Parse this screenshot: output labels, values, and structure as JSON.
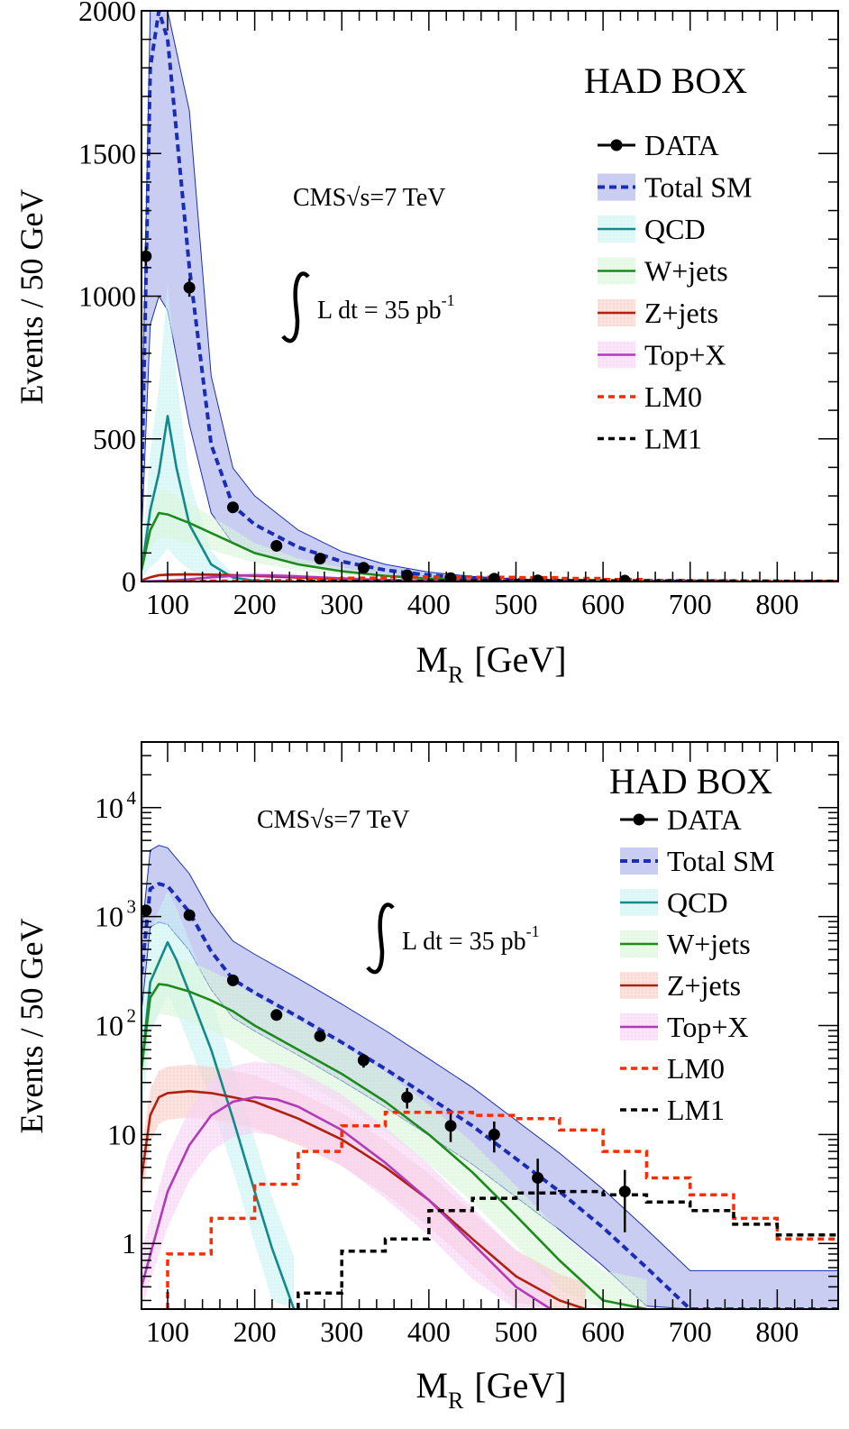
{
  "chart_data": [
    {
      "type": "line",
      "scale": "linear",
      "box_label": "HAD BOX",
      "cms_label": "CMS",
      "sqrt_label": "√s=7 TeV",
      "lumi_label": "L dt = 35 pb",
      "lumi_exp": "-1",
      "xlabel_main": "M",
      "xlabel_sub": "R",
      "xlabel_unit": "[GeV]",
      "ylabel": "Events / 50 GeV",
      "xlim": [
        70,
        870
      ],
      "ylim": [
        0,
        2000
      ],
      "x_ticks": [
        "100",
        "200",
        "300",
        "400",
        "500",
        "600",
        "700",
        "800"
      ],
      "y_ticks": [
        "0",
        "500",
        "1000",
        "1500",
        "2000"
      ],
      "legend": [
        "DATA",
        "Total SM",
        "QCD",
        "W+jets",
        "Z+jets",
        "Top+X",
        "LM0",
        "LM1"
      ],
      "data_points": {
        "x": [
          75,
          125,
          175,
          225,
          275,
          325,
          375,
          425,
          475,
          525,
          625
        ],
        "y": [
          1140,
          1030,
          260,
          125,
          80,
          48,
          22,
          12,
          10,
          4,
          3
        ]
      },
      "series": [
        {
          "name": "Total SM",
          "x": [
            70,
            80,
            90,
            100,
            125,
            150,
            175,
            200,
            250,
            300,
            350,
            400,
            450,
            500,
            550,
            600,
            650,
            700,
            870
          ],
          "y": [
            300,
            1800,
            2000,
            1900,
            1100,
            480,
            265,
            200,
            120,
            70,
            40,
            22,
            12,
            6,
            3,
            1.4,
            0.6,
            0.25,
            0.1
          ]
        },
        {
          "name": "QCD",
          "x": [
            70,
            80,
            90,
            100,
            110,
            125,
            150,
            175,
            200,
            220,
            245
          ],
          "y": [
            40,
            250,
            380,
            580,
            400,
            200,
            60,
            14,
            3,
            0.9,
            0.25
          ]
        },
        {
          "name": "W+jets",
          "x": [
            70,
            80,
            90,
            100,
            125,
            150,
            175,
            200,
            250,
            300,
            350,
            400,
            450,
            500,
            550,
            600,
            650
          ],
          "y": [
            40,
            180,
            240,
            235,
            205,
            170,
            135,
            100,
            60,
            36,
            20,
            10,
            4.5,
            1.8,
            0.7,
            0.3,
            0.25
          ]
        },
        {
          "name": "Z+jets",
          "x": [
            70,
            80,
            90,
            100,
            125,
            150,
            175,
            200,
            250,
            300,
            350,
            400,
            450,
            500,
            550,
            580
          ],
          "y": [
            4,
            15,
            22,
            24,
            25,
            24,
            22,
            20,
            14,
            9,
            5,
            2.5,
            1.1,
            0.5,
            0.3,
            0.25
          ]
        },
        {
          "name": "Top+X",
          "x": [
            70,
            100,
            125,
            150,
            175,
            200,
            225,
            250,
            300,
            350,
            400,
            450,
            500,
            540
          ],
          "y": [
            0.4,
            3,
            8,
            15,
            20,
            22,
            21,
            18,
            11,
            5.5,
            2.5,
            1,
            0.4,
            0.25
          ]
        },
        {
          "name": "LM0",
          "x": [
            100,
            150,
            200,
            250,
            300,
            350,
            400,
            450,
            500,
            550,
            600,
            650,
            700,
            750,
            800,
            870
          ],
          "y": [
            0.8,
            1.7,
            3.5,
            7,
            12,
            16,
            16,
            15,
            14,
            11,
            7,
            4,
            2.8,
            1.7,
            1.1,
            1.1
          ]
        },
        {
          "name": "LM1",
          "x": [
            250,
            300,
            350,
            400,
            450,
            500,
            550,
            600,
            650,
            700,
            750,
            800,
            870
          ],
          "y": [
            0.35,
            0.85,
            1.1,
            2.0,
            2.6,
            2.9,
            3.0,
            2.8,
            2.4,
            2.0,
            1.5,
            1.2,
            1.2
          ]
        }
      ]
    },
    {
      "type": "line",
      "scale": "log",
      "box_label": "HAD BOX",
      "cms_label": "CMS",
      "sqrt_label": "√s=7 TeV",
      "lumi_label": "L dt = 35 pb",
      "lumi_exp": "-1",
      "xlabel_main": "M",
      "xlabel_sub": "R",
      "xlabel_unit": "[GeV]",
      "ylabel": "Events / 50 GeV",
      "xlim": [
        70,
        870
      ],
      "ylim": [
        0.25,
        40000
      ],
      "x_ticks": [
        "100",
        "200",
        "300",
        "400",
        "500",
        "600",
        "700",
        "800"
      ],
      "y_ticks": [
        {
          "base": "1",
          "exp": ""
        },
        {
          "base": "10",
          "exp": ""
        },
        {
          "base": "10",
          "exp": "2"
        },
        {
          "base": "10",
          "exp": "3"
        },
        {
          "base": "10",
          "exp": "4"
        }
      ],
      "legend": [
        "DATA",
        "Total SM",
        "QCD",
        "W+jets",
        "Z+jets",
        "Top+X",
        "LM0",
        "LM1"
      ],
      "data_points": {
        "x": [
          75,
          125,
          175,
          225,
          275,
          325,
          375,
          425,
          475,
          525,
          625
        ],
        "y": [
          1140,
          1030,
          260,
          125,
          80,
          48,
          22,
          12,
          10,
          4,
          3
        ]
      },
      "series": [
        {
          "name": "Total SM",
          "x": [
            70,
            80,
            90,
            100,
            125,
            150,
            175,
            200,
            250,
            300,
            350,
            400,
            450,
            500,
            550,
            600,
            650,
            700,
            870
          ],
          "y": [
            300,
            1800,
            2000,
            1900,
            1100,
            480,
            265,
            200,
            120,
            70,
            40,
            22,
            12,
            6,
            3,
            1.4,
            0.6,
            0.25,
            0.25
          ]
        },
        {
          "name": "QCD",
          "x": [
            70,
            80,
            90,
            100,
            110,
            125,
            150,
            175,
            200,
            220,
            245
          ],
          "y": [
            40,
            250,
            380,
            580,
            400,
            200,
            60,
            14,
            3,
            0.9,
            0.25
          ]
        },
        {
          "name": "W+jets",
          "x": [
            70,
            80,
            90,
            100,
            125,
            150,
            175,
            200,
            250,
            300,
            350,
            400,
            450,
            500,
            550,
            600,
            650
          ],
          "y": [
            40,
            180,
            240,
            235,
            205,
            170,
            135,
            100,
            60,
            36,
            20,
            10,
            4.5,
            1.8,
            0.7,
            0.3,
            0.25
          ]
        },
        {
          "name": "Z+jets",
          "x": [
            70,
            80,
            90,
            100,
            125,
            150,
            175,
            200,
            250,
            300,
            350,
            400,
            450,
            500,
            550,
            580
          ],
          "y": [
            4,
            15,
            22,
            24,
            25,
            24,
            22,
            20,
            14,
            9,
            5,
            2.5,
            1.1,
            0.5,
            0.3,
            0.25
          ]
        },
        {
          "name": "Top+X",
          "x": [
            70,
            100,
            125,
            150,
            175,
            200,
            225,
            250,
            300,
            350,
            400,
            450,
            500,
            540
          ],
          "y": [
            0.4,
            3,
            8,
            15,
            20,
            22,
            21,
            18,
            11,
            5.5,
            2.5,
            1,
            0.4,
            0.25
          ]
        },
        {
          "name": "LM0",
          "x": [
            100,
            150,
            200,
            250,
            300,
            350,
            400,
            450,
            500,
            550,
            600,
            650,
            700,
            750,
            800,
            870
          ],
          "y": [
            0.8,
            1.7,
            3.5,
            7,
            12,
            16,
            16,
            15,
            14,
            11,
            7,
            4,
            2.8,
            1.7,
            1.1,
            1.1
          ]
        },
        {
          "name": "LM1",
          "x": [
            250,
            300,
            350,
            400,
            450,
            500,
            550,
            600,
            650,
            700,
            750,
            800,
            870
          ],
          "y": [
            0.35,
            0.85,
            1.1,
            2.0,
            2.6,
            2.9,
            3.0,
            2.8,
            2.4,
            2.0,
            1.5,
            1.2,
            1.2
          ]
        }
      ]
    }
  ],
  "colors": {
    "total_sm": "#1a2db5",
    "total_sm_band": "#c9cdf2",
    "qcd": "#138a8a",
    "qcd_band": "#c8f2f4",
    "wjets": "#1e8a1e",
    "wjets_band": "#d8f5d8",
    "zjets": "#b02010",
    "zjets_band": "#f7c9c2",
    "topx": "#b03ab8",
    "topx_band": "#f6d0f4",
    "lm0": "#ff2a00",
    "lm1": "#000000",
    "data": "#000000"
  }
}
